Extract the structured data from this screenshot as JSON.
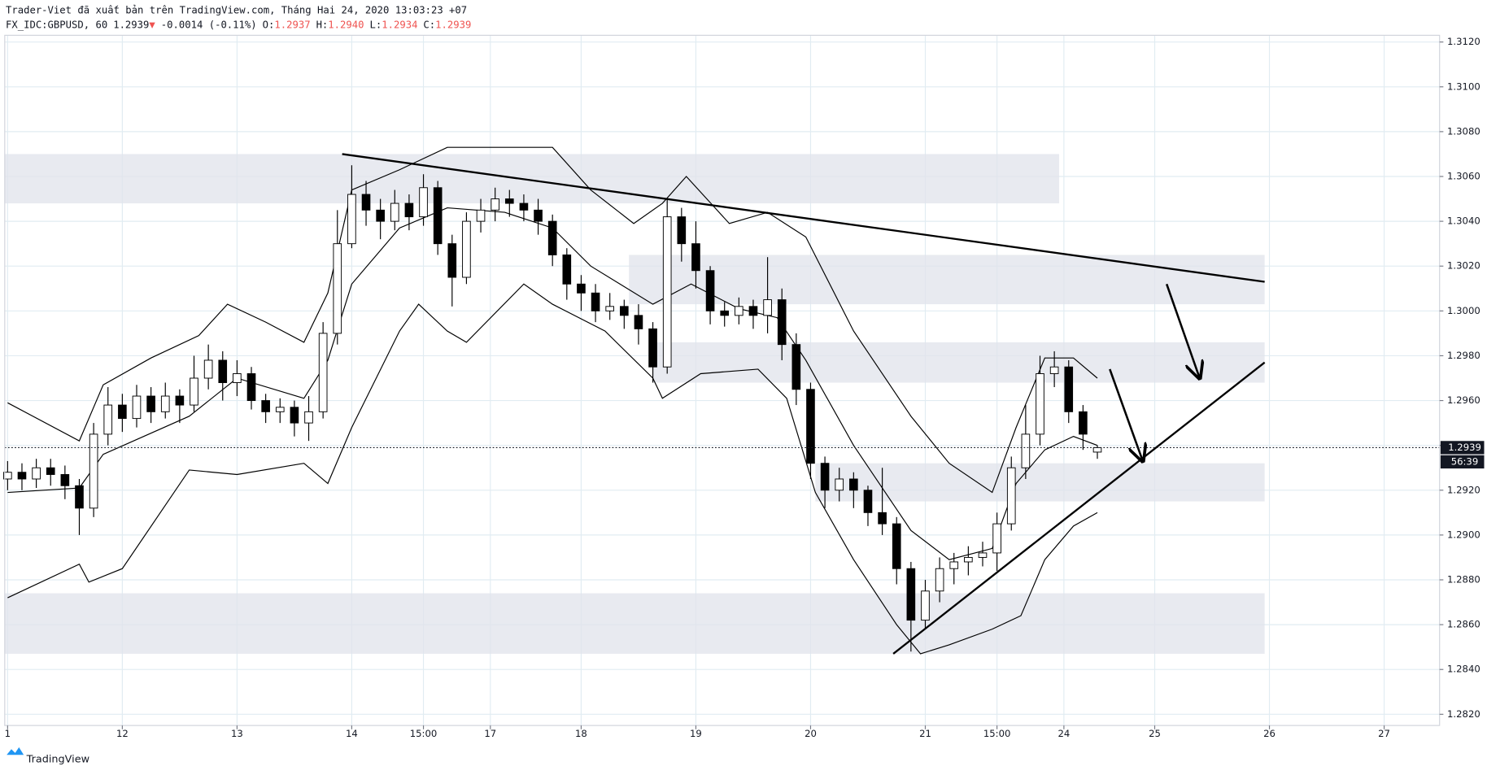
{
  "header": {
    "publisher": "Trader-Viet đã xuất bản trên TradingView.com, Tháng Hai 24, 2020 13:03:23 +07",
    "symbol": "FX_IDC:GBPUSD, 60",
    "price": "1.2939",
    "arrow": "▼",
    "change": "-0.0014 (-0.11%)",
    "ohlc": [
      {
        "label": "O:",
        "value": "1.2937"
      },
      {
        "label": "H:",
        "value": "1.2940"
      },
      {
        "label": "L:",
        "value": "1.2934"
      },
      {
        "label": "C:",
        "value": "1.2939"
      }
    ]
  },
  "footer": {
    "brand": "TradingView"
  },
  "chart_data": {
    "type": "candlestick",
    "up_color": "#ffffff",
    "down_color": "#000000",
    "wick_color": "#000000",
    "xlim": [
      -0.6,
      299.6
    ],
    "ylim": [
      1.2815,
      1.3123
    ],
    "grid": true,
    "xticks": [
      {
        "value": 0,
        "label": "1"
      },
      {
        "value": 24,
        "label": "12"
      },
      {
        "value": 48,
        "label": "13"
      },
      {
        "value": 72,
        "label": "14"
      },
      {
        "value": 87,
        "label": "15:00"
      },
      {
        "value": 101,
        "label": "17"
      },
      {
        "value": 120,
        "label": "18"
      },
      {
        "value": 144,
        "label": "19"
      },
      {
        "value": 168,
        "label": "20"
      },
      {
        "value": 192,
        "label": "21"
      },
      {
        "value": 207,
        "label": "15:00"
      },
      {
        "value": 221,
        "label": "24"
      },
      {
        "value": 240,
        "label": "25"
      },
      {
        "value": 264,
        "label": "26"
      },
      {
        "value": 288,
        "label": "27"
      }
    ],
    "yticks": [
      {
        "value": 1.282,
        "label": "1.2820"
      },
      {
        "value": 1.284,
        "label": "1.2840"
      },
      {
        "value": 1.286,
        "label": "1.2860"
      },
      {
        "value": 1.288,
        "label": "1.2880"
      },
      {
        "value": 1.29,
        "label": "1.2900"
      },
      {
        "value": 1.292,
        "label": "1.2920"
      },
      {
        "value": 1.294,
        "label": "1.2940"
      },
      {
        "value": 1.296,
        "label": "1.2960"
      },
      {
        "value": 1.298,
        "label": "1.2980"
      },
      {
        "value": 1.3,
        "label": "1.3000"
      },
      {
        "value": 1.302,
        "label": "1.3020"
      },
      {
        "value": 1.304,
        "label": "1.3040"
      },
      {
        "value": 1.306,
        "label": "1.3060"
      },
      {
        "value": 1.308,
        "label": "1.3080"
      },
      {
        "value": 1.31,
        "label": "1.3100"
      },
      {
        "value": 1.312,
        "label": "1.3120"
      }
    ],
    "x": [
      0,
      3,
      6,
      9,
      12,
      15,
      18,
      21,
      24,
      27,
      30,
      33,
      36,
      39,
      42,
      45,
      48,
      51,
      54,
      57,
      60,
      63,
      66,
      69,
      72,
      75,
      78,
      81,
      84,
      87,
      90,
      93,
      96,
      99,
      102,
      105,
      108,
      111,
      114,
      117,
      120,
      123,
      126,
      129,
      132,
      135,
      138,
      141,
      144,
      147,
      150,
      153,
      156,
      159,
      162,
      165,
      168,
      171,
      174,
      177,
      180,
      183,
      186,
      189,
      192,
      195,
      198,
      201,
      204,
      207,
      210,
      213,
      216,
      219,
      222,
      225,
      228
    ],
    "ohlc": [
      [
        1.2925,
        1.2933,
        1.292,
        1.2928
      ],
      [
        1.2928,
        1.2932,
        1.292,
        1.2925
      ],
      [
        1.2925,
        1.2934,
        1.2921,
        1.293
      ],
      [
        1.293,
        1.2934,
        1.2922,
        1.2927
      ],
      [
        1.2927,
        1.2931,
        1.2916,
        1.2922
      ],
      [
        1.2922,
        1.2925,
        1.29,
        1.2912
      ],
      [
        1.2912,
        1.295,
        1.2908,
        1.2945
      ],
      [
        1.2945,
        1.2966,
        1.294,
        1.2958
      ],
      [
        1.2958,
        1.2963,
        1.2946,
        1.2952
      ],
      [
        1.2952,
        1.2967,
        1.2948,
        1.2962
      ],
      [
        1.2962,
        1.2966,
        1.295,
        1.2955
      ],
      [
        1.2955,
        1.2968,
        1.2952,
        1.2962
      ],
      [
        1.2962,
        1.2965,
        1.295,
        1.2958
      ],
      [
        1.2958,
        1.298,
        1.2955,
        1.297
      ],
      [
        1.297,
        1.2985,
        1.2965,
        1.2978
      ],
      [
        1.2978,
        1.2982,
        1.296,
        1.2968
      ],
      [
        1.2968,
        1.2978,
        1.2962,
        1.2972
      ],
      [
        1.2972,
        1.2975,
        1.2956,
        1.296
      ],
      [
        1.296,
        1.2963,
        1.295,
        1.2955
      ],
      [
        1.2955,
        1.2961,
        1.295,
        1.2957
      ],
      [
        1.2957,
        1.296,
        1.2944,
        1.295
      ],
      [
        1.295,
        1.2962,
        1.2942,
        1.2955
      ],
      [
        1.2955,
        1.2995,
        1.2952,
        1.299
      ],
      [
        1.299,
        1.3045,
        1.2985,
        1.303
      ],
      [
        1.303,
        1.3065,
        1.3028,
        1.3052
      ],
      [
        1.3052,
        1.3058,
        1.3038,
        1.3045
      ],
      [
        1.3045,
        1.305,
        1.3032,
        1.304
      ],
      [
        1.304,
        1.3054,
        1.3036,
        1.3048
      ],
      [
        1.3048,
        1.3052,
        1.3036,
        1.3042
      ],
      [
        1.3042,
        1.3061,
        1.3038,
        1.3055
      ],
      [
        1.3055,
        1.3058,
        1.3025,
        1.303
      ],
      [
        1.303,
        1.3034,
        1.3002,
        1.3015
      ],
      [
        1.3015,
        1.3044,
        1.3012,
        1.304
      ],
      [
        1.304,
        1.305,
        1.3035,
        1.3045
      ],
      [
        1.3045,
        1.3055,
        1.304,
        1.305
      ],
      [
        1.305,
        1.3054,
        1.3042,
        1.3048
      ],
      [
        1.3048,
        1.3052,
        1.304,
        1.3045
      ],
      [
        1.3045,
        1.305,
        1.3034,
        1.304
      ],
      [
        1.304,
        1.3043,
        1.302,
        1.3025
      ],
      [
        1.3025,
        1.3028,
        1.3005,
        1.3012
      ],
      [
        1.3012,
        1.3016,
        1.3,
        1.3008
      ],
      [
        1.3008,
        1.3012,
        1.2995,
        1.3
      ],
      [
        1.3,
        1.3008,
        1.2996,
        1.3002
      ],
      [
        1.3002,
        1.3005,
        1.2992,
        1.2998
      ],
      [
        1.2998,
        1.3003,
        1.2985,
        1.2992
      ],
      [
        1.2992,
        1.2995,
        1.2968,
        1.2975
      ],
      [
        1.2975,
        1.305,
        1.2972,
        1.3042
      ],
      [
        1.3042,
        1.3046,
        1.3022,
        1.303
      ],
      [
        1.303,
        1.304,
        1.301,
        1.3018
      ],
      [
        1.3018,
        1.302,
        1.2994,
        1.3
      ],
      [
        1.3,
        1.3004,
        1.2993,
        1.2998
      ],
      [
        1.2998,
        1.3006,
        1.2994,
        1.3002
      ],
      [
        1.3002,
        1.3005,
        1.2992,
        1.2998
      ],
      [
        1.2998,
        1.3024,
        1.299,
        1.3005
      ],
      [
        1.3005,
        1.301,
        1.2978,
        1.2985
      ],
      [
        1.2985,
        1.299,
        1.2958,
        1.2965
      ],
      [
        1.2965,
        1.2968,
        1.2925,
        1.2932
      ],
      [
        1.2932,
        1.2935,
        1.2912,
        1.292
      ],
      [
        1.292,
        1.293,
        1.2915,
        1.2925
      ],
      [
        1.2925,
        1.2928,
        1.2912,
        1.292
      ],
      [
        1.292,
        1.2922,
        1.2904,
        1.291
      ],
      [
        1.291,
        1.293,
        1.29,
        1.2905
      ],
      [
        1.2905,
        1.2908,
        1.2878,
        1.2885
      ],
      [
        1.2885,
        1.2888,
        1.2848,
        1.2862
      ],
      [
        1.2862,
        1.288,
        1.2858,
        1.2875
      ],
      [
        1.2875,
        1.289,
        1.287,
        1.2885
      ],
      [
        1.2885,
        1.2892,
        1.2878,
        1.2888
      ],
      [
        1.2888,
        1.2895,
        1.2882,
        1.289
      ],
      [
        1.289,
        1.2897,
        1.2886,
        1.2892
      ],
      [
        1.2892,
        1.291,
        1.2884,
        1.2905
      ],
      [
        1.2905,
        1.2935,
        1.2902,
        1.293
      ],
      [
        1.293,
        1.2958,
        1.2925,
        1.2945
      ],
      [
        1.2945,
        1.298,
        1.294,
        1.2972
      ],
      [
        1.2972,
        1.2982,
        1.2966,
        1.2975
      ],
      [
        1.2975,
        1.2978,
        1.295,
        1.2955
      ],
      [
        1.2955,
        1.2958,
        1.2938,
        1.2945
      ],
      [
        1.2937,
        1.294,
        1.2934,
        1.2939
      ]
    ],
    "bands": [
      {
        "color": "#000000",
        "x": [
          0,
          15,
          20,
          30,
          40,
          46,
          54,
          62,
          67,
          72,
          82,
          92,
          104,
          114,
          122,
          131,
          137,
          142,
          151,
          159,
          167,
          177,
          189,
          197,
          206,
          211,
          217,
          223,
          228
        ],
        "values": [
          1.2959,
          1.2942,
          1.2967,
          1.2979,
          1.2989,
          1.3003,
          1.2995,
          1.2986,
          1.3008,
          1.3054,
          1.3063,
          1.3073,
          1.3073,
          1.3073,
          1.3054,
          1.3039,
          1.3048,
          1.306,
          1.3039,
          1.3044,
          1.3033,
          1.2991,
          1.2953,
          1.2932,
          1.2919,
          1.2948,
          1.2979,
          1.2979,
          1.297
        ]
      },
      {
        "color": "#000000",
        "x": [
          0,
          15,
          20,
          38,
          48,
          62,
          67,
          72,
          82,
          92,
          104,
          114,
          122,
          135,
          143,
          153,
          161,
          167,
          177,
          189,
          197,
          206,
          211,
          217,
          223,
          228
        ],
        "values": [
          1.2919,
          1.2921,
          1.2936,
          1.2953,
          1.297,
          1.2961,
          1.2978,
          1.3012,
          1.3037,
          1.3046,
          1.3044,
          1.3037,
          1.302,
          1.3003,
          1.3012,
          1.3001,
          1.2997,
          1.2978,
          1.294,
          1.2902,
          1.2889,
          1.2894,
          1.2923,
          1.2938,
          1.2944,
          1.294
        ]
      },
      {
        "color": "#000000",
        "x": [
          0,
          15,
          17,
          24,
          38,
          48,
          62,
          67,
          72,
          82,
          86,
          92,
          96,
          108,
          114,
          125,
          135,
          137,
          145,
          157,
          163,
          169,
          177,
          186,
          191,
          197,
          206,
          212,
          217,
          223,
          228
        ],
        "values": [
          1.2872,
          1.2887,
          1.2879,
          1.2885,
          1.2929,
          1.2927,
          1.2932,
          1.2923,
          1.2948,
          1.2991,
          1.3003,
          1.2991,
          1.2986,
          1.3012,
          1.3003,
          1.2991,
          1.297,
          1.2961,
          1.2972,
          1.2974,
          1.2961,
          1.2919,
          1.2889,
          1.286,
          1.2847,
          1.2851,
          1.2858,
          1.2864,
          1.2889,
          1.2904,
          1.291
        ]
      }
    ],
    "zones": [
      {
        "color": "#e0e3eb",
        "x": [
          -0.6,
          220
        ],
        "y": [
          1.3048,
          1.307
        ]
      },
      {
        "color": "#e0e3eb",
        "x": [
          130,
          263
        ],
        "y": [
          1.3003,
          1.3025
        ]
      },
      {
        "color": "#e0e3eb",
        "x": [
          135,
          263
        ],
        "y": [
          1.2968,
          1.2986
        ]
      },
      {
        "color": "#e0e3eb",
        "x": [
          169,
          263
        ],
        "y": [
          1.2915,
          1.2932
        ]
      },
      {
        "color": "#e0e3eb",
        "x": [
          -0.6,
          263
        ],
        "y": [
          1.2847,
          1.2874
        ]
      }
    ],
    "trendlines": [
      {
        "color": "#000000",
        "x": [
          70,
          263
        ],
        "y": [
          1.307,
          1.3013
        ]
      },
      {
        "color": "#000000",
        "x": [
          185.3,
          263
        ],
        "y": [
          1.2847,
          1.2977
        ]
      }
    ],
    "arrows": [
      {
        "color": "#000000",
        "x": [
          242.5,
          249.4
        ],
        "y": [
          1.3012,
          1.297
        ]
      },
      {
        "color": "#000000",
        "x": [
          230.6,
          237.5
        ],
        "y": [
          1.2974,
          1.2933
        ]
      }
    ],
    "last_price": 1.2939,
    "countdown": "56:39"
  }
}
